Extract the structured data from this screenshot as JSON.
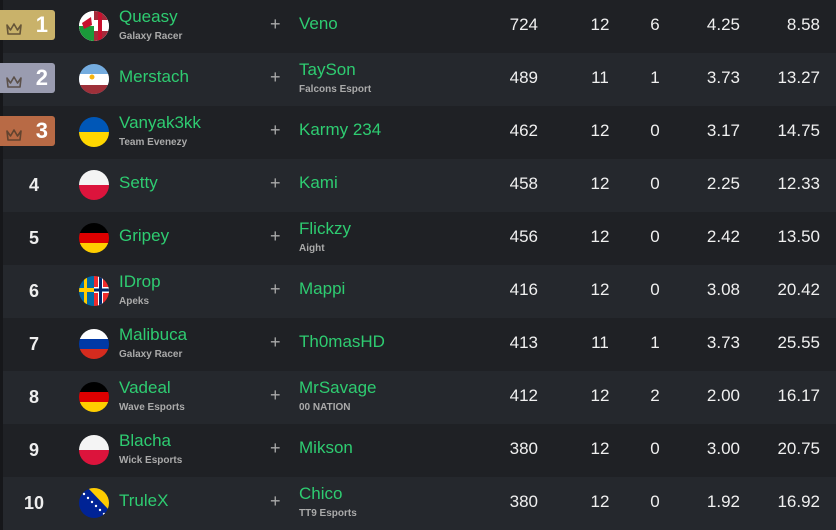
{
  "colors": {
    "gold": "#c9b26a",
    "silver": "#9a9cb0",
    "bronze": "#b86a45",
    "name": "#2ecc71"
  },
  "rows": [
    {
      "rank": "1",
      "medal": "gold",
      "flag": "wales-england",
      "player1": "Queasy",
      "team1": "Galaxy Racer",
      "player2": "Veno",
      "team2": "",
      "points": "724",
      "c1": "12",
      "c2": "6",
      "c3": "4.25",
      "c4": "8.58"
    },
    {
      "rank": "2",
      "medal": "silver",
      "flag": "argentina-latvia",
      "player1": "Merstach",
      "team1": "",
      "player2": "TaySon",
      "team2": "Falcons Esport",
      "points": "489",
      "c1": "11",
      "c2": "1",
      "c3": "3.73",
      "c4": "13.27"
    },
    {
      "rank": "3",
      "medal": "bronze",
      "flag": "ukraine",
      "player1": "Vanyak3kk",
      "team1": "Team Evenezy",
      "player2": "Karmy 234",
      "team2": "",
      "points": "462",
      "c1": "12",
      "c2": "0",
      "c3": "3.17",
      "c4": "14.75"
    },
    {
      "rank": "4",
      "medal": "",
      "flag": "poland",
      "player1": "Setty",
      "team1": "",
      "player2": "Kami",
      "team2": "",
      "points": "458",
      "c1": "12",
      "c2": "0",
      "c3": "2.25",
      "c4": "12.33"
    },
    {
      "rank": "5",
      "medal": "",
      "flag": "germany",
      "player1": "Gripey",
      "team1": "",
      "player2": "Flickzy",
      "team2": "Aight",
      "points": "456",
      "c1": "12",
      "c2": "0",
      "c3": "2.42",
      "c4": "13.50"
    },
    {
      "rank": "6",
      "medal": "",
      "flag": "sweden-norway",
      "player1": "IDrop",
      "team1": "Apeks",
      "player2": "Mappi",
      "team2": "",
      "points": "416",
      "c1": "12",
      "c2": "0",
      "c3": "3.08",
      "c4": "20.42"
    },
    {
      "rank": "7",
      "medal": "",
      "flag": "russia",
      "player1": "Malibuca",
      "team1": "Galaxy Racer",
      "player2": "Th0masHD",
      "team2": "",
      "points": "413",
      "c1": "11",
      "c2": "1",
      "c3": "3.73",
      "c4": "25.55"
    },
    {
      "rank": "8",
      "medal": "",
      "flag": "germany",
      "player1": "Vadeal",
      "team1": "Wave Esports",
      "player2": "MrSavage",
      "team2": "00 NATION",
      "points": "412",
      "c1": "12",
      "c2": "2",
      "c3": "2.00",
      "c4": "16.17"
    },
    {
      "rank": "9",
      "medal": "",
      "flag": "poland",
      "player1": "Blacha",
      "team1": "Wick Esports",
      "player2": "Mikson",
      "team2": "",
      "points": "380",
      "c1": "12",
      "c2": "0",
      "c3": "3.00",
      "c4": "20.75"
    },
    {
      "rank": "10",
      "medal": "",
      "flag": "bosnia",
      "player1": "TruleX",
      "team1": "",
      "player2": "Chico",
      "team2": "TT9 Esports",
      "points": "380",
      "c1": "12",
      "c2": "0",
      "c3": "1.92",
      "c4": "16.92"
    }
  ]
}
